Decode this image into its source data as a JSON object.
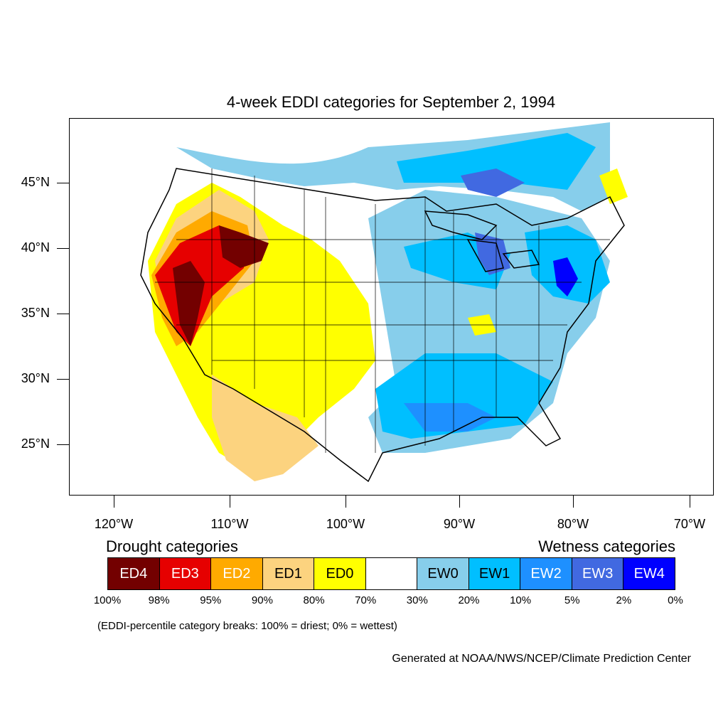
{
  "title": "4-week EDDI categories for September 2, 1994",
  "lat_labels": [
    "45°N",
    "40°N",
    "35°N",
    "30°N",
    "25°N"
  ],
  "lon_labels": [
    "120°W",
    "110°W",
    "100°W",
    "90°W",
    "80°W",
    "70°W"
  ],
  "legend": {
    "drought_heading": "Drought categories",
    "wetness_heading": "Wetness categories",
    "categories": [
      {
        "label": "ED4",
        "color": "#730000",
        "text_color": "#ffffff"
      },
      {
        "label": "ED3",
        "color": "#e60000",
        "text_color": "#ffffff"
      },
      {
        "label": "ED2",
        "color": "#ffaa00",
        "text_color": "#ffffff"
      },
      {
        "label": "ED1",
        "color": "#fcd37f",
        "text_color": "#000000"
      },
      {
        "label": "ED0",
        "color": "#ffff00",
        "text_color": "#000000"
      },
      {
        "label": "",
        "color": "#ffffff",
        "text_color": "#000000"
      },
      {
        "label": "EW0",
        "color": "#87ceeb",
        "text_color": "#000000"
      },
      {
        "label": "EW1",
        "color": "#00bfff",
        "text_color": "#000000"
      },
      {
        "label": "EW2",
        "color": "#1e90ff",
        "text_color": "#ffffff"
      },
      {
        "label": "EW3",
        "color": "#4169e1",
        "text_color": "#ffffff"
      },
      {
        "label": "EW4",
        "color": "#0000ff",
        "text_color": "#ffffff"
      }
    ],
    "breaks": [
      "100%",
      "98%",
      "95%",
      "90%",
      "80%",
      "70%",
      "30%",
      "20%",
      "10%",
      "5%",
      "2%",
      "0%"
    ],
    "note": "(EDDI-percentile category breaks: 100% = driest; 0% = wettest)"
  },
  "credit": "Generated at NOAA/NWS/NCEP/Climate Prediction Center",
  "regions": [
    {
      "name": "west-drought-ed1",
      "category": "ED1"
    },
    {
      "name": "west-drought-ed0",
      "category": "ED0"
    },
    {
      "name": "west-drought-ed2",
      "category": "ED2"
    },
    {
      "name": "west-drought-ed3",
      "category": "ED3"
    },
    {
      "name": "west-drought-ed4",
      "category": "ED4"
    },
    {
      "name": "northeast-wet-ew1",
      "category": "EW1"
    },
    {
      "name": "gulf-wet-ew2",
      "category": "EW2"
    },
    {
      "name": "great-lakes-wet-ew3",
      "category": "EW3"
    },
    {
      "name": "mid-atlantic-wet-ew4",
      "category": "EW4"
    }
  ]
}
